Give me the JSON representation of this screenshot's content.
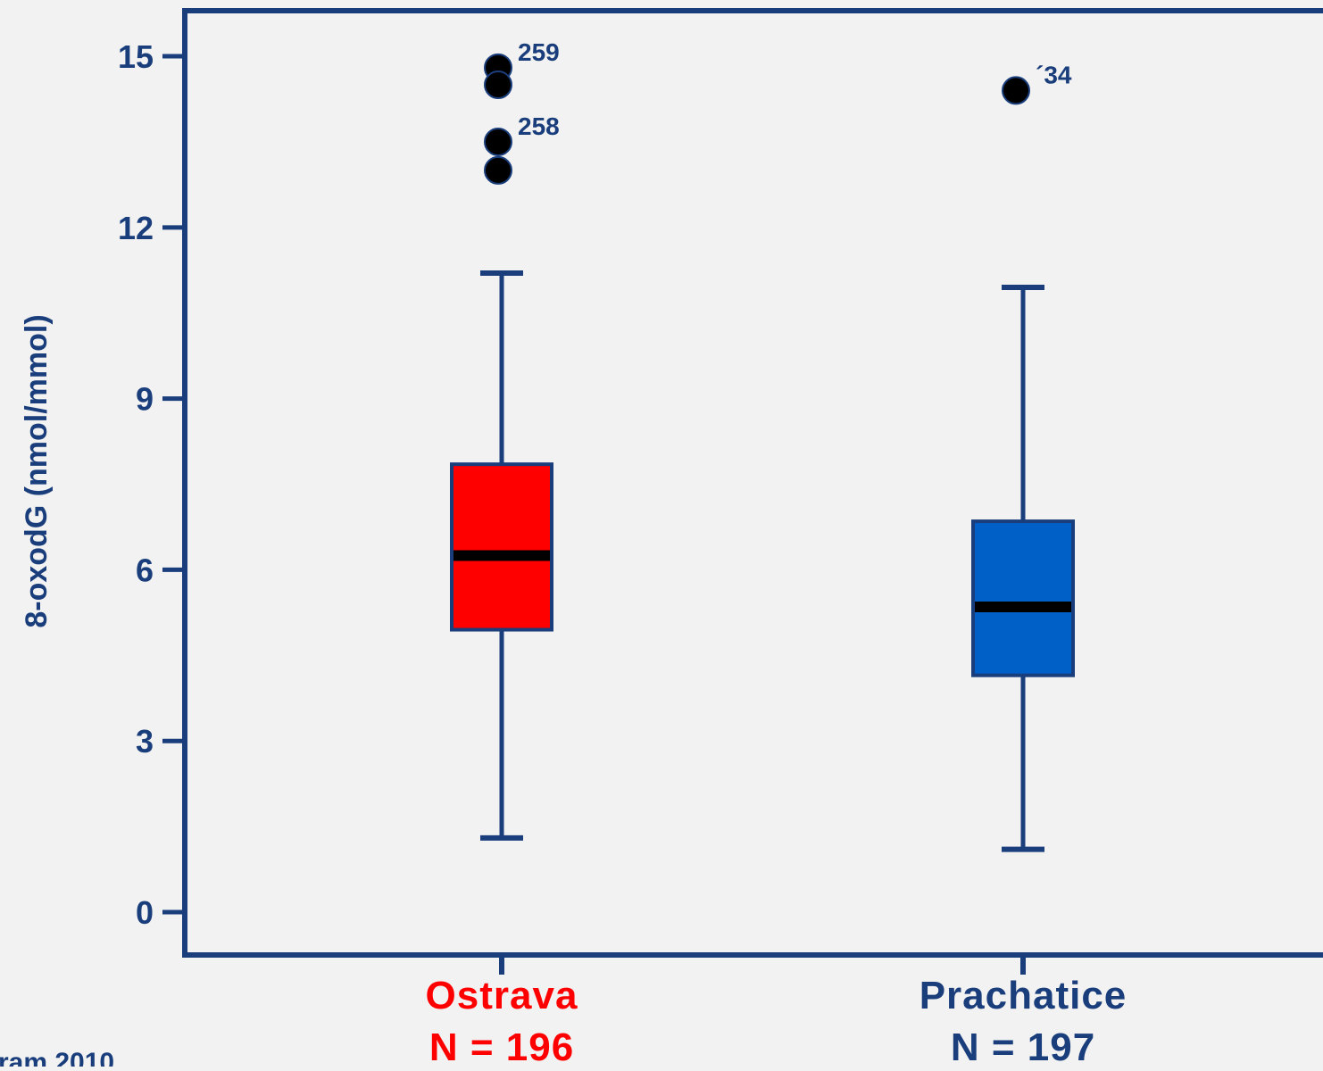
{
  "chart_data": {
    "type": "box",
    "ylabel": "8-oxodG (nmol/mmol)",
    "ylim": [
      -0.8,
      16
    ],
    "yticks": [
      0,
      3,
      6,
      9,
      12,
      15
    ],
    "yticklabels": [
      "0",
      "3",
      "6",
      "9",
      "12",
      "15"
    ],
    "groups": [
      {
        "name": "Ostrava",
        "n_label": "N = 196",
        "color": "#ff0000",
        "label_color": "#ff0000",
        "whisker_low": 1.3,
        "q1": 4.95,
        "median": 6.25,
        "q3": 7.85,
        "whisker_high": 11.2,
        "outliers": [
          {
            "value": 14.8,
            "label": "259"
          },
          {
            "value": 14.5,
            "label": ""
          },
          {
            "value": 13.5,
            "label": "258"
          },
          {
            "value": 13.0,
            "label": ""
          }
        ]
      },
      {
        "name": "Prachatice",
        "n_label": "N = 197",
        "color": "#0060c8",
        "label_color": "#1a3e7c",
        "whisker_low": 1.1,
        "q1": 4.15,
        "median": 5.35,
        "q3": 6.85,
        "whisker_high": 10.95,
        "outliers": [
          {
            "value": 14.4,
            "label": "´34"
          }
        ]
      }
    ],
    "footnote": "ram 2010",
    "colors": {
      "axis": "#1a3e7c",
      "whisker": "#1a3e7c",
      "median": "#000000",
      "outlier": "#000000",
      "text": "#1a3e7c"
    }
  }
}
